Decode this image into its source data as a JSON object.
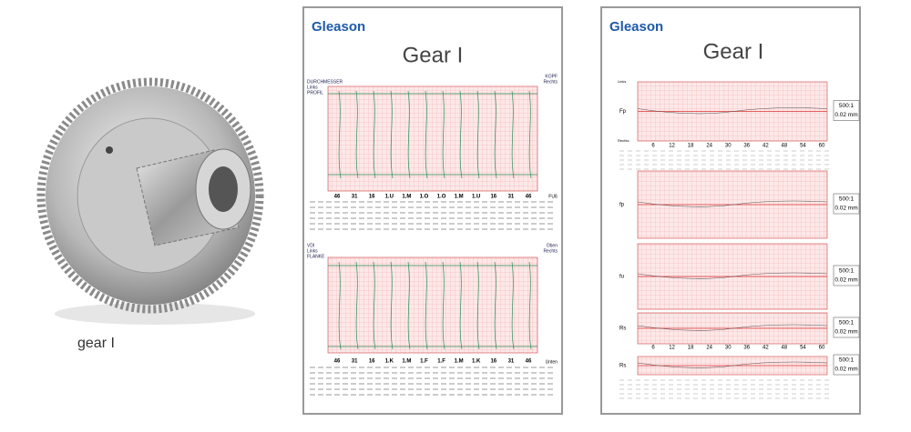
{
  "caption": "gear I",
  "sheet1": {
    "logo": "Gleason",
    "title": "Gear I",
    "profile_label": [
      "DURCHMESSER",
      "Links",
      "PROFIL"
    ],
    "profile_right": [
      "KOPF",
      "Rechts"
    ],
    "profile_foot": "FUß",
    "profile_ticks": [
      "46",
      "31",
      "16",
      "1.U",
      "1.M",
      "1.O",
      "1.O",
      "1.M",
      "1.U",
      "16",
      "31",
      "46"
    ],
    "flank_label": [
      "VDI",
      "Links",
      "FLANKE"
    ],
    "flank_right": [
      "Oben",
      "Rechts"
    ],
    "flank_foot": "Unten",
    "flank_ticks": [
      "46",
      "31",
      "16",
      "1.K",
      "1.M",
      "1.F",
      "1.F",
      "1.M",
      "1.K",
      "16",
      "31",
      "46"
    ]
  },
  "sheet2": {
    "logo": "Gleason",
    "title": "Gear I",
    "panels": [
      {
        "label": "Fp",
        "scale": "500:1",
        "unit": "0.02 mm"
      },
      {
        "label": "fp",
        "scale": "500:1",
        "unit": "0.02 mm"
      },
      {
        "label": "fu",
        "scale": "500:1",
        "unit": "0.02 mm"
      },
      {
        "label": "Rs",
        "scale": "500:1",
        "unit": "0.02 mm"
      },
      {
        "label": "Rs",
        "scale": "500:1",
        "unit": "0.02 mm"
      }
    ],
    "axis_top": [
      "6",
      "12",
      "18",
      "24",
      "30",
      "36",
      "42",
      "48",
      "54",
      "60"
    ],
    "axis_bottom": [
      "6",
      "12",
      "18",
      "24",
      "30",
      "36",
      "42",
      "48",
      "54",
      "60"
    ],
    "side": [
      "Links",
      "Rechts"
    ]
  }
}
